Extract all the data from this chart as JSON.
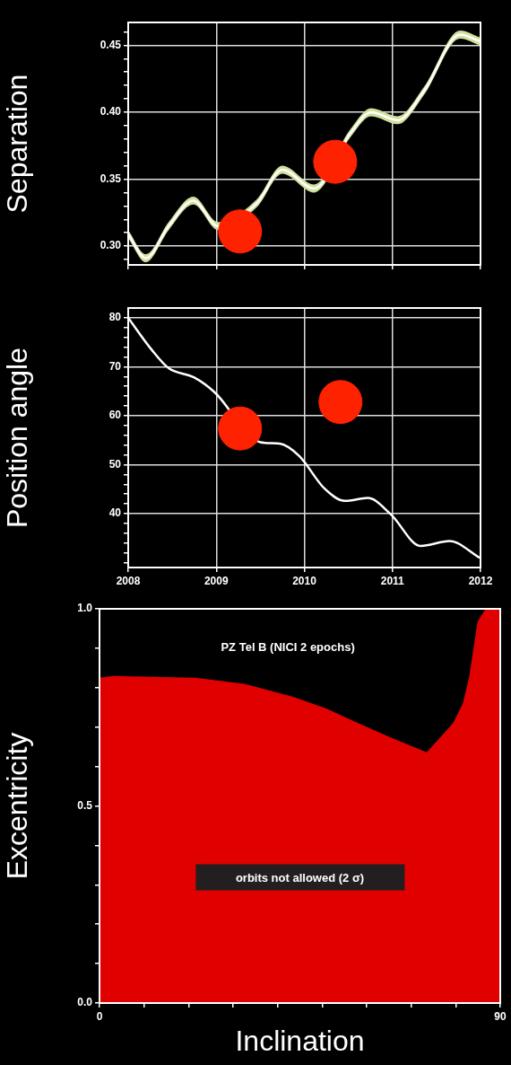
{
  "chart_data": [
    {
      "type": "line",
      "ylabel": "Separation",
      "xlim": [
        2008,
        2012
      ],
      "xticks": [
        2008,
        2009,
        2010,
        2011,
        2012
      ],
      "ylim": [
        0.286,
        0.467
      ],
      "yticks": [
        {
          "value": 0.29,
          "label": null
        },
        {
          "value": 0.3,
          "label": "0.30"
        },
        {
          "value": 0.31,
          "label": null
        },
        {
          "value": 0.32,
          "label": null
        },
        {
          "value": 0.33,
          "label": null
        },
        {
          "value": 0.34,
          "label": null
        },
        {
          "value": 0.35,
          "label": "0.35"
        },
        {
          "value": 0.36,
          "label": null
        },
        {
          "value": 0.37,
          "label": null
        },
        {
          "value": 0.38,
          "label": null
        },
        {
          "value": 0.39,
          "label": null
        },
        {
          "value": 0.4,
          "label": "0.40"
        },
        {
          "value": 0.41,
          "label": null
        },
        {
          "value": 0.42,
          "label": null
        },
        {
          "value": 0.43,
          "label": null
        },
        {
          "value": 0.44,
          "label": null
        },
        {
          "value": 0.45,
          "label": "0.45"
        },
        {
          "value": 0.46,
          "label": null
        }
      ],
      "grid": true,
      "tick_labels": "y",
      "series": [
        {
          "color": "#ffffff",
          "x": [
            2008.0,
            2008.2,
            2008.46,
            2008.74,
            2009.02,
            2009.27,
            2009.46,
            2009.75,
            2010.11,
            2010.35,
            2010.52,
            2010.76,
            2011.06,
            2011.36,
            2011.77,
            2011.99
          ],
          "values": [
            0.309,
            0.291,
            0.315,
            0.334,
            0.315,
            null,
            0.332,
            0.357,
            0.343,
            null,
            0.384,
            0.4,
            0.394,
            0.416,
            0.458,
            0.453
          ],
          "lower": [
            0.306,
            0.288,
            0.312,
            0.331,
            0.312,
            null,
            0.329,
            0.354,
            0.34,
            null,
            0.381,
            0.397,
            0.391,
            0.413,
            0.455,
            0.45
          ],
          "upper": [
            0.312,
            0.294,
            0.318,
            0.337,
            0.318,
            null,
            0.335,
            0.36,
            0.346,
            null,
            0.387,
            0.403,
            0.397,
            0.419,
            0.461,
            0.456
          ]
        },
        {
          "type": "scatter",
          "color": "#ff2200",
          "marker": "circle",
          "x": [
            2009.27,
            2010.35
          ],
          "values": [
            0.311,
            0.363
          ]
        }
      ]
    },
    {
      "type": "line",
      "ylabel": "Position angle",
      "xlim": [
        2008,
        2012
      ],
      "xticks": [
        2008,
        2009,
        2010,
        2011,
        2012
      ],
      "ylim": [
        29,
        82
      ],
      "yticks": [
        {
          "value": 30,
          "label": null
        },
        {
          "value": 32,
          "label": null
        },
        {
          "value": 34,
          "label": null
        },
        {
          "value": 36,
          "label": null
        },
        {
          "value": 38,
          "label": null
        },
        40,
        {
          "value": 42,
          "label": null
        },
        {
          "value": 44,
          "label": null
        },
        {
          "value": 46,
          "label": null
        },
        {
          "value": 48,
          "label": null
        },
        50,
        {
          "value": 52,
          "label": null
        },
        {
          "value": 54,
          "label": null
        },
        {
          "value": 56,
          "label": null
        },
        {
          "value": 58,
          "label": null
        },
        60,
        {
          "value": 62,
          "label": null
        },
        {
          "value": 64,
          "label": null
        },
        {
          "value": 66,
          "label": null
        },
        {
          "value": 68,
          "label": null
        },
        70,
        {
          "value": 72,
          "label": null
        },
        {
          "value": 74,
          "label": null
        },
        {
          "value": 76,
          "label": null
        },
        {
          "value": 78,
          "label": null
        },
        80
      ],
      "grid": true,
      "series": [
        {
          "color": "#ffffff",
          "x": [
            2008.0,
            2008.27,
            2008.46,
            2008.75,
            2008.98,
            2009.2,
            2009.5,
            2009.72,
            2009.94,
            2010.23,
            2010.46,
            2010.72,
            2010.98,
            2011.32,
            2011.65,
            2011.99
          ],
          "values": [
            80,
            73.4,
            69.7,
            67.8,
            64.8,
            null,
            54.6,
            54.3,
            51.8,
            45.1,
            42.6,
            43.2,
            39.9,
            33.4,
            34.4,
            31.0
          ]
        },
        {
          "type": "scatter",
          "color": "#ff2200",
          "marker": "circle",
          "x": [
            2009.27,
            2010.41
          ],
          "values": [
            57.4,
            62.8
          ]
        }
      ]
    },
    {
      "type": "area",
      "title": "PZ Tel B (NICI 2 epochs)",
      "xlabel": "Inclination",
      "ylabel": "Excentricity",
      "xlim": [
        0,
        90
      ],
      "ylim": [
        0,
        1
      ],
      "xticks": [
        0,
        {
          "value": 10,
          "label": null
        },
        {
          "value": 20,
          "label": null
        },
        {
          "value": 30,
          "label": null
        },
        {
          "value": 40,
          "label": null
        },
        {
          "value": 50,
          "label": null
        },
        {
          "value": 60,
          "label": null
        },
        {
          "value": 70,
          "label": null
        },
        {
          "value": 80,
          "label": null
        },
        90
      ],
      "yticks": [
        {
          "value": 0,
          "label": "0.0"
        },
        {
          "value": 0.1,
          "label": null
        },
        {
          "value": 0.2,
          "label": null
        },
        {
          "value": 0.3,
          "label": null
        },
        {
          "value": 0.4,
          "label": null
        },
        0.5,
        {
          "value": 0.6,
          "label": null
        },
        {
          "value": 0.7,
          "label": null
        },
        {
          "value": 0.8,
          "label": null
        },
        {
          "value": 0.9,
          "label": null
        },
        {
          "value": 1,
          "label": "1.0"
        }
      ],
      "annotations": [
        "orbits not allowed (2 σ)"
      ],
      "series": [
        {
          "color": "#e00000",
          "x": [
            0,
            3.1,
            21.5,
            32.5,
            43.5,
            50.8,
            58.1,
            65.5,
            73.5,
            79.4,
            81.6,
            83,
            84.9,
            86.7,
            90
          ],
          "values": [
            0.825,
            0.83,
            0.825,
            0.81,
            0.777,
            0.748,
            0.71,
            0.673,
            0.636,
            0.71,
            0.76,
            0.826,
            0.967,
            1.0,
            1.0
          ]
        }
      ]
    }
  ]
}
